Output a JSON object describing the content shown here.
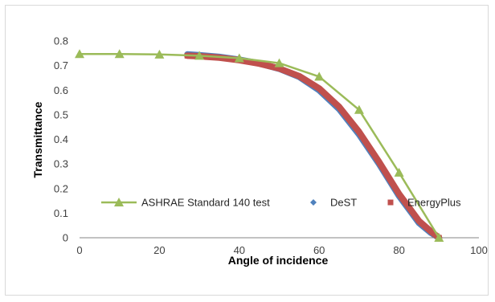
{
  "chart_data": {
    "type": "line",
    "xlabel": "Angle of incidence",
    "ylabel": "Transmittance",
    "xlim": [
      0,
      100
    ],
    "ylim": [
      0,
      0.8
    ],
    "xticks": [
      "0",
      "20",
      "40",
      "60",
      "80",
      "100"
    ],
    "yticks": [
      "0",
      "0.1",
      "0.2",
      "0.3",
      "0.4",
      "0.5",
      "0.6",
      "0.7",
      "0.8"
    ],
    "grid": false,
    "legend_position": "bottom-inside",
    "series": [
      {
        "name": "ASHRAE Standard 140 test",
        "color": "#9bbb59",
        "marker": "triangle",
        "x": [
          0,
          10,
          20,
          30,
          40,
          50,
          60,
          70,
          80,
          90
        ],
        "y": [
          0.747,
          0.747,
          0.745,
          0.74,
          0.73,
          0.71,
          0.655,
          0.52,
          0.265,
          0.0
        ]
      },
      {
        "name": "DeST",
        "color": "#4f81bd",
        "marker": "diamond",
        "x": [
          27,
          30,
          35,
          40,
          45,
          50,
          55,
          60,
          65,
          70,
          75,
          80,
          85,
          88,
          90
        ],
        "y": [
          0.745,
          0.742,
          0.735,
          0.724,
          0.709,
          0.687,
          0.654,
          0.6,
          0.523,
          0.42,
          0.3,
          0.17,
          0.06,
          0.02,
          0.0
        ]
      },
      {
        "name": "EnergyPlus",
        "color": "#c0504d",
        "marker": "square",
        "x": [
          27,
          30,
          35,
          40,
          45,
          50,
          55,
          60,
          65,
          70,
          75,
          80,
          85,
          88,
          90
        ],
        "y": [
          0.74,
          0.738,
          0.732,
          0.722,
          0.708,
          0.688,
          0.657,
          0.607,
          0.532,
          0.43,
          0.308,
          0.178,
          0.068,
          0.025,
          0.0
        ]
      }
    ]
  }
}
